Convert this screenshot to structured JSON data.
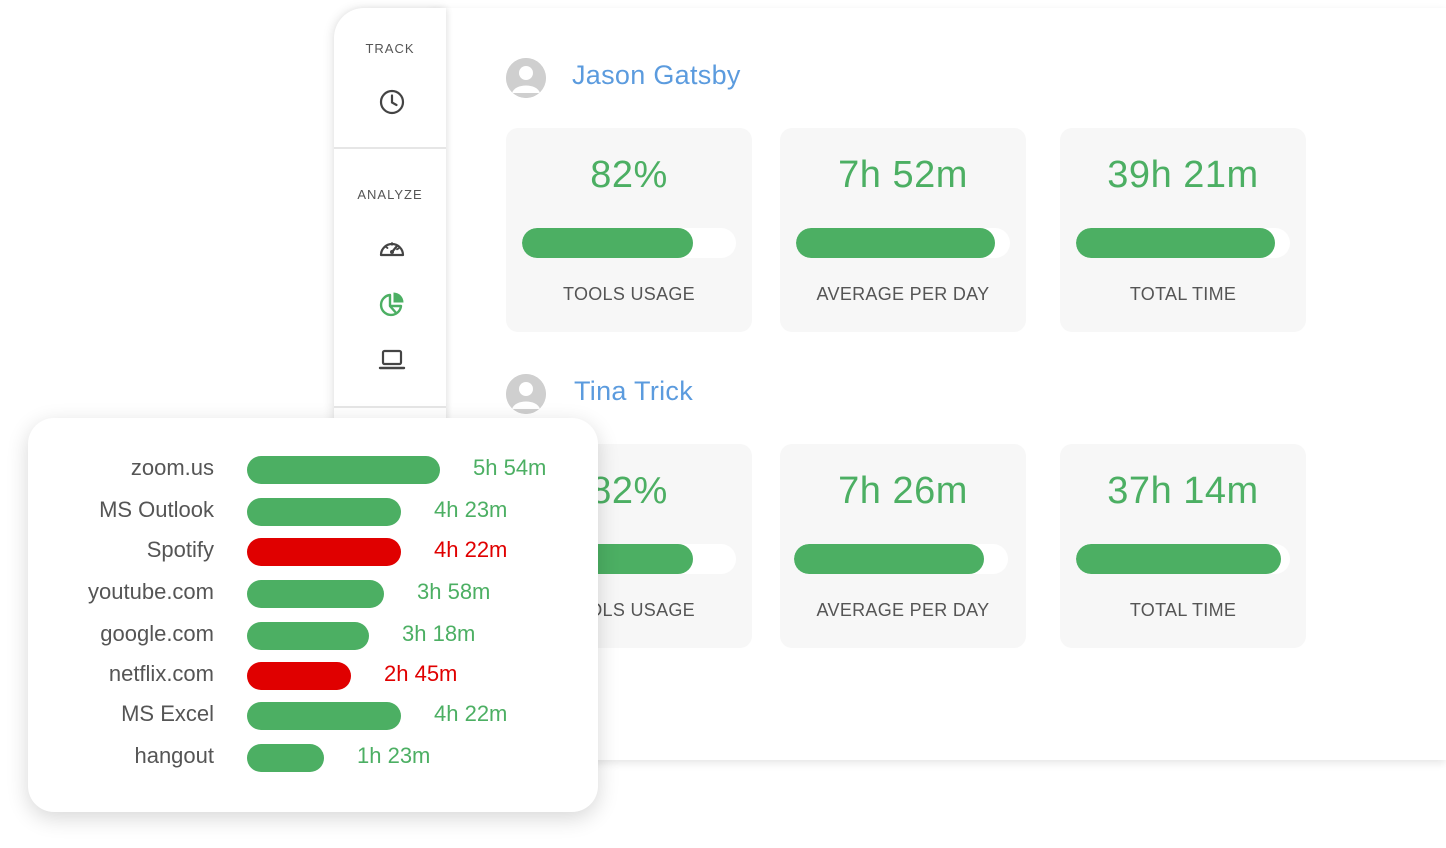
{
  "colors": {
    "green": "#4caf63",
    "red": "#e00000",
    "name_blue": "#5b9bde"
  },
  "sidebar": {
    "sections": [
      {
        "label": "TRACK",
        "icons": [
          "clock-icon"
        ]
      },
      {
        "label": "ANALYZE",
        "icons": [
          "speedometer-icon",
          "pie-chart-icon",
          "laptop-icon"
        ]
      }
    ]
  },
  "users": [
    {
      "name": "Jason Gatsby",
      "stats": [
        {
          "value": "82%",
          "label": "TOOLS USAGE",
          "fill": 0.8
        },
        {
          "value": "7h 52m",
          "label": "AVERAGE PER DAY",
          "fill": 0.93
        },
        {
          "value": "39h 21m",
          "label": "TOTAL TIME",
          "fill": 0.93
        }
      ]
    },
    {
      "name": "Tina Trick",
      "stats": [
        {
          "value": "82%",
          "label": "TOOLS USAGE",
          "fill": 0.8
        },
        {
          "value": "7h 26m",
          "label": "AVERAGE PER DAY",
          "fill": 0.89
        },
        {
          "value": "37h 14m",
          "label": "TOTAL TIME",
          "fill": 0.96
        }
      ]
    }
  ],
  "apps": [
    {
      "name": "zoom.us",
      "time": "5h 54m",
      "status": "productive",
      "fill": 1.0
    },
    {
      "name": "MS Outlook",
      "time": "4h 23m",
      "status": "productive",
      "fill": 0.8
    },
    {
      "name": "Spotify",
      "time": "4h 22m",
      "status": "unproductive",
      "fill": 0.8
    },
    {
      "name": "youtube.com",
      "time": "3h 58m",
      "status": "productive",
      "fill": 0.71
    },
    {
      "name": "google.com",
      "time": "3h 18m",
      "status": "productive",
      "fill": 0.63
    },
    {
      "name": "netflix.com",
      "time": "2h 45m",
      "status": "unproductive",
      "fill": 0.54
    },
    {
      "name": "MS Excel",
      "time": "4h 22m",
      "status": "productive",
      "fill": 0.8
    },
    {
      "name": "hangout",
      "time": "1h 23m",
      "status": "productive",
      "fill": 0.4
    }
  ]
}
